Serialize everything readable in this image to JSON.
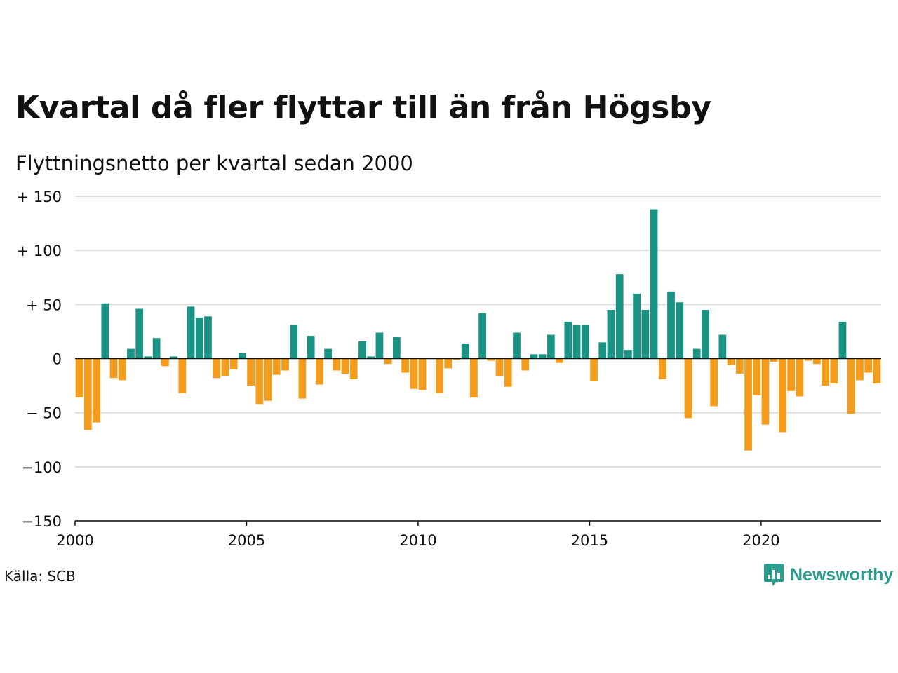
{
  "header": {
    "title": "Kvartal då fler flyttar till än från Högsby",
    "subtitle": "Flyttningsnetto per kvartal sedan 2000"
  },
  "footer": {
    "source": "Källa: SCB",
    "brand": "Newsworthy",
    "brand_icon": "newsworthy-logo-icon"
  },
  "colors": {
    "positive": "#1a9384",
    "negative": "#f49c1c",
    "grid": "#dddddd",
    "axis": "#111111",
    "brand": "#2a9d8f"
  },
  "chart_data": {
    "type": "bar",
    "title": "Kvartal då fler flyttar till än från Högsby",
    "subtitle": "Flyttningsnetto per kvartal sedan 2000",
    "ylim": [
      -150,
      150
    ],
    "yticks": [
      150,
      100,
      50,
      0,
      -50,
      -100,
      -150
    ],
    "ytick_labels": [
      "+ 150",
      "+ 100",
      "+  50",
      "0",
      "− 50",
      "−100",
      "−150"
    ],
    "xticks": [
      2000,
      2005,
      2010,
      2015,
      2020
    ],
    "xtick_labels": [
      "2000",
      "2005",
      "2010",
      "2015",
      "2020"
    ],
    "grid": true,
    "series": [
      {
        "start": "2000 Q1",
        "values": [
          -36,
          -66,
          -59,
          51,
          -18,
          -20,
          9,
          46,
          2,
          19,
          -7,
          2,
          -32,
          48,
          38,
          39,
          -18,
          -16,
          -10,
          5,
          -25,
          -42,
          -39,
          -15,
          -11,
          31,
          -37,
          21,
          -24,
          9,
          -11,
          -14,
          -19,
          16,
          2,
          24,
          -5,
          20,
          -13,
          -28,
          -29,
          0,
          -32,
          -9,
          -1,
          14,
          -36,
          42,
          -2,
          -16,
          -26,
          24,
          -11,
          4,
          4,
          22,
          -4,
          34,
          31,
          31,
          -21,
          15,
          45,
          78,
          8,
          60,
          45,
          138,
          -19,
          62,
          52,
          -55,
          9,
          45,
          -44,
          22,
          -6,
          -14,
          -85,
          -34,
          -61,
          -3,
          -68,
          -30,
          -35,
          -2,
          -5,
          -25,
          -23,
          34,
          -51,
          -20,
          -13,
          -23
        ]
      }
    ]
  }
}
